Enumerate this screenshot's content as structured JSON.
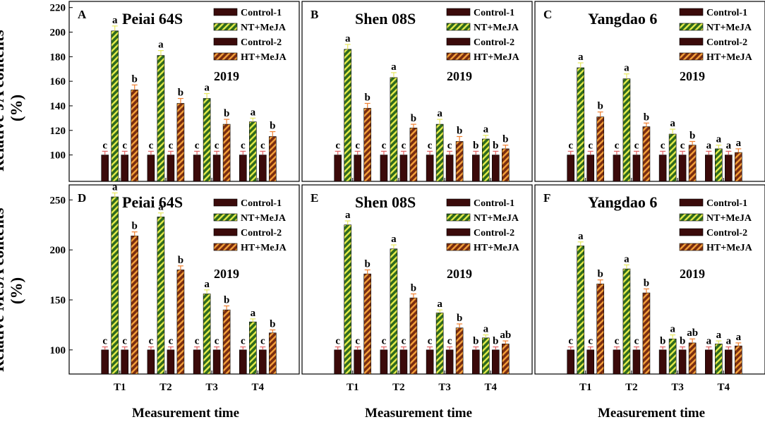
{
  "figure": {
    "ylabel_top_line1": "Relative JA contents",
    "ylabel_top_line2": "(%)",
    "ylabel_bottom_line1": "Relative MeJA contents",
    "ylabel_bottom_line2": "(%)",
    "xlabel": "Measurement time"
  },
  "colors": {
    "control": "#3b0a0a",
    "nt_fill": "#2f6b1e",
    "nt_hatch": "#e5ec4a",
    "ht_fill": "#7a2d10",
    "ht_hatch": "#f5a03a",
    "err_nt": "#e8e860",
    "err_ht": "#f08030",
    "err_ctrl": "#e06060"
  },
  "chart_data": [
    {
      "id": "A",
      "panel_letter": "A",
      "title": "Peiai 64S",
      "year": "2019",
      "type": "bar",
      "ylim": [
        90,
        225
      ],
      "yticks": [
        "100",
        "120",
        "140",
        "160",
        "180",
        "200",
        "220"
      ],
      "categories": [
        "T1",
        "T2",
        "T3",
        "T4"
      ],
      "legend": [
        "Control-1",
        "NT+MeJA",
        "Control-2",
        "HT+MeJA"
      ],
      "series": [
        {
          "name": "Control-1",
          "values": [
            100,
            100,
            100,
            100
          ],
          "err": [
            3,
            3,
            3,
            3
          ],
          "letters": [
            "c",
            "c",
            "c",
            "c"
          ]
        },
        {
          "name": "NT+MeJA",
          "values": [
            201,
            181,
            146,
            127
          ],
          "err": [
            4,
            4,
            4,
            3
          ],
          "letters": [
            "a",
            "a",
            "a",
            "a"
          ]
        },
        {
          "name": "Control-2",
          "values": [
            100,
            100,
            100,
            100
          ],
          "err": [
            3,
            3,
            3,
            3
          ],
          "letters": [
            "c",
            "c",
            "c",
            "c"
          ]
        },
        {
          "name": "HT+MeJA",
          "values": [
            153,
            142,
            125,
            115
          ],
          "err": [
            4,
            4,
            4,
            4
          ],
          "letters": [
            "b",
            "b",
            "b",
            "b"
          ]
        }
      ]
    },
    {
      "id": "B",
      "panel_letter": "B",
      "title": "Shen 08S",
      "year": "2019",
      "type": "bar",
      "ylim": [
        90,
        225
      ],
      "yticks": [],
      "categories": [
        "T1",
        "T2",
        "T3",
        "T4"
      ],
      "legend": [
        "Control-1",
        "NT+MeJA",
        "Control-2",
        "HT+MeJA"
      ],
      "series": [
        {
          "name": "Control-1",
          "values": [
            100,
            100,
            100,
            100
          ],
          "err": [
            3,
            3,
            3,
            3
          ],
          "letters": [
            "c",
            "c",
            "c",
            "b"
          ]
        },
        {
          "name": "NT+MeJA",
          "values": [
            186,
            163,
            125,
            113
          ],
          "err": [
            4,
            4,
            4,
            3
          ],
          "letters": [
            "a",
            "a",
            "a",
            "a"
          ]
        },
        {
          "name": "Control-2",
          "values": [
            100,
            100,
            100,
            100
          ],
          "err": [
            3,
            3,
            3,
            3
          ],
          "letters": [
            "c",
            "c",
            "c",
            "b"
          ]
        },
        {
          "name": "HT+MeJA",
          "values": [
            138,
            122,
            111,
            105
          ],
          "err": [
            4,
            3,
            4,
            3
          ],
          "letters": [
            "b",
            "b",
            "b",
            "b"
          ]
        }
      ]
    },
    {
      "id": "C",
      "panel_letter": "C",
      "title": "Yangdao 6",
      "year": "2019",
      "type": "bar",
      "ylim": [
        90,
        225
      ],
      "yticks": [],
      "categories": [
        "T1",
        "T2",
        "T3",
        "T4"
      ],
      "legend": [
        "Control-1",
        "NT+MeJA",
        "Control-2",
        "HT+MeJA"
      ],
      "series": [
        {
          "name": "Control-1",
          "values": [
            100,
            100,
            100,
            100
          ],
          "err": [
            3,
            3,
            3,
            3
          ],
          "letters": [
            "c",
            "c",
            "c",
            "a"
          ]
        },
        {
          "name": "NT+MeJA",
          "values": [
            171,
            162,
            117,
            105
          ],
          "err": [
            4,
            4,
            4,
            3
          ],
          "letters": [
            "a",
            "a",
            "a",
            "a"
          ]
        },
        {
          "name": "Control-2",
          "values": [
            100,
            100,
            100,
            100
          ],
          "err": [
            3,
            3,
            3,
            3
          ],
          "letters": [
            "c",
            "c",
            "c",
            "a"
          ]
        },
        {
          "name": "HT+MeJA",
          "values": [
            131,
            123,
            108,
            102
          ],
          "err": [
            4,
            3,
            3,
            3
          ],
          "letters": [
            "b",
            "b",
            "b",
            "a"
          ]
        }
      ]
    },
    {
      "id": "D",
      "panel_letter": "D",
      "title": "Peiai 64S",
      "year": "2019",
      "type": "bar",
      "ylim": [
        90,
        265
      ],
      "yticks": [
        "100",
        "150",
        "200",
        "250"
      ],
      "categories": [
        "T1",
        "T2",
        "T3",
        "T4"
      ],
      "legend": [
        "Control-1",
        "NT+MeJA",
        "Control-2",
        "HT+MeJA"
      ],
      "series": [
        {
          "name": "Control-1",
          "values": [
            100,
            100,
            100,
            100
          ],
          "err": [
            3,
            3,
            3,
            3
          ],
          "letters": [
            "c",
            "c",
            "c",
            "c"
          ]
        },
        {
          "name": "NT+MeJA",
          "values": [
            253,
            233,
            156,
            128
          ],
          "err": [
            4,
            4,
            4,
            3
          ],
          "letters": [
            "a",
            "a",
            "a",
            "a"
          ]
        },
        {
          "name": "Control-2",
          "values": [
            100,
            100,
            100,
            100
          ],
          "err": [
            3,
            3,
            3,
            3
          ],
          "letters": [
            "c",
            "c",
            "c",
            "c"
          ]
        },
        {
          "name": "HT+MeJA",
          "values": [
            214,
            180,
            140,
            117
          ],
          "err": [
            4,
            4,
            4,
            3
          ],
          "letters": [
            "b",
            "b",
            "b",
            "b"
          ]
        }
      ]
    },
    {
      "id": "E",
      "panel_letter": "E",
      "title": "Shen 08S",
      "year": "2019",
      "type": "bar",
      "ylim": [
        90,
        265
      ],
      "yticks": [],
      "categories": [
        "T1",
        "T2",
        "T3",
        "T4"
      ],
      "legend": [
        "Control-1",
        "NT+MeJA",
        "Control-2",
        "HT+MeJA"
      ],
      "series": [
        {
          "name": "Control-1",
          "values": [
            100,
            100,
            100,
            100
          ],
          "err": [
            3,
            3,
            3,
            3
          ],
          "letters": [
            "c",
            "c",
            "c",
            "b"
          ]
        },
        {
          "name": "NT+MeJA",
          "values": [
            225,
            201,
            137,
            112
          ],
          "err": [
            4,
            4,
            3,
            3
          ],
          "letters": [
            "a",
            "a",
            "a",
            "a"
          ]
        },
        {
          "name": "Control-2",
          "values": [
            100,
            100,
            100,
            100
          ],
          "err": [
            3,
            3,
            3,
            3
          ],
          "letters": [
            "c",
            "c",
            "c",
            "b"
          ]
        },
        {
          "name": "HT+MeJA",
          "values": [
            176,
            152,
            122,
            106
          ],
          "err": [
            4,
            4,
            4,
            3
          ],
          "letters": [
            "b",
            "b",
            "b",
            "ab"
          ]
        }
      ]
    },
    {
      "id": "F",
      "panel_letter": "F",
      "title": "Yangdao 6",
      "year": "2019",
      "type": "bar",
      "ylim": [
        90,
        265
      ],
      "yticks": [],
      "categories": [
        "T1",
        "T2",
        "T3",
        "T4"
      ],
      "legend": [
        "Control-1",
        "NT+MeJA",
        "Control-2",
        "HT+MeJA"
      ],
      "series": [
        {
          "name": "Control-1",
          "values": [
            100,
            100,
            100,
            100
          ],
          "err": [
            3,
            3,
            3,
            3
          ],
          "letters": [
            "c",
            "c",
            "b",
            "a"
          ]
        },
        {
          "name": "NT+MeJA",
          "values": [
            204,
            181,
            111,
            106
          ],
          "err": [
            4,
            4,
            4,
            3
          ],
          "letters": [
            "a",
            "a",
            "a",
            "a"
          ]
        },
        {
          "name": "Control-2",
          "values": [
            100,
            100,
            100,
            100
          ],
          "err": [
            3,
            3,
            3,
            3
          ],
          "letters": [
            "c",
            "c",
            "b",
            "a"
          ]
        },
        {
          "name": "HT+MeJA",
          "values": [
            166,
            157,
            107,
            104
          ],
          "err": [
            4,
            4,
            4,
            3
          ],
          "letters": [
            "b",
            "b",
            "ab",
            "a"
          ]
        }
      ]
    }
  ]
}
